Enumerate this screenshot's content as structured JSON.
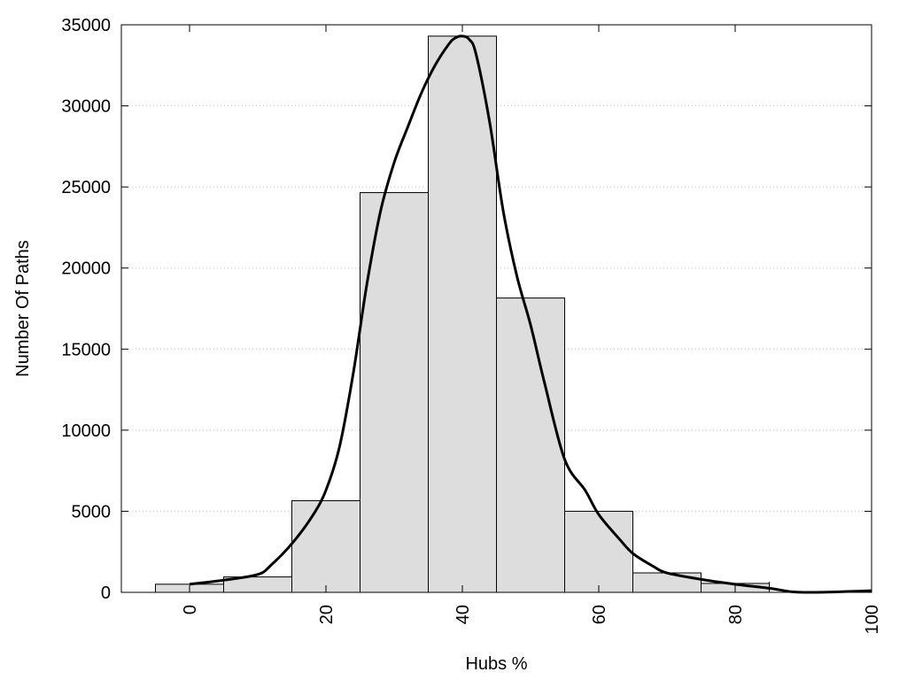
{
  "chart_data": {
    "type": "bar",
    "title": "",
    "xlabel": "Hubs %",
    "ylabel": "Number Of Paths",
    "xlim": [
      -10,
      100
    ],
    "ylim": [
      0,
      35000
    ],
    "x_ticks": [
      0,
      20,
      40,
      60,
      80,
      100
    ],
    "y_ticks": [
      0,
      5000,
      10000,
      15000,
      20000,
      25000,
      30000,
      35000
    ],
    "grid": "horizontal-dotted",
    "legend": "none",
    "bin_width": 10,
    "bars": {
      "centers": [
        0,
        10,
        20,
        30,
        40,
        50,
        60,
        70,
        80,
        90
      ],
      "values": [
        500,
        950,
        5650,
        24650,
        34300,
        18150,
        5000,
        1200,
        550,
        0
      ]
    },
    "curve": {
      "x": [
        0,
        5,
        10,
        12,
        15,
        18,
        20,
        22,
        24,
        26,
        28,
        30,
        32,
        34,
        36,
        38,
        39,
        40,
        41,
        42,
        44,
        46,
        48,
        50,
        52,
        55,
        58,
        60,
        63,
        65,
        68,
        70,
        75,
        80,
        85,
        88,
        90,
        95,
        100
      ],
      "y": [
        500,
        750,
        1100,
        1700,
        3000,
        4700,
        6300,
        9000,
        13500,
        19000,
        23500,
        26500,
        28700,
        30800,
        32500,
        33800,
        34200,
        34300,
        34100,
        33200,
        29000,
        23500,
        19500,
        16500,
        13000,
        8200,
        6300,
        4800,
        3300,
        2400,
        1600,
        1200,
        800,
        500,
        250,
        50,
        0,
        30,
        100
      ]
    },
    "colors": {
      "bar_fill": "#dddddd",
      "bar_stroke": "#000000",
      "curve": "#000000",
      "grid": "#c8c8c8"
    }
  }
}
